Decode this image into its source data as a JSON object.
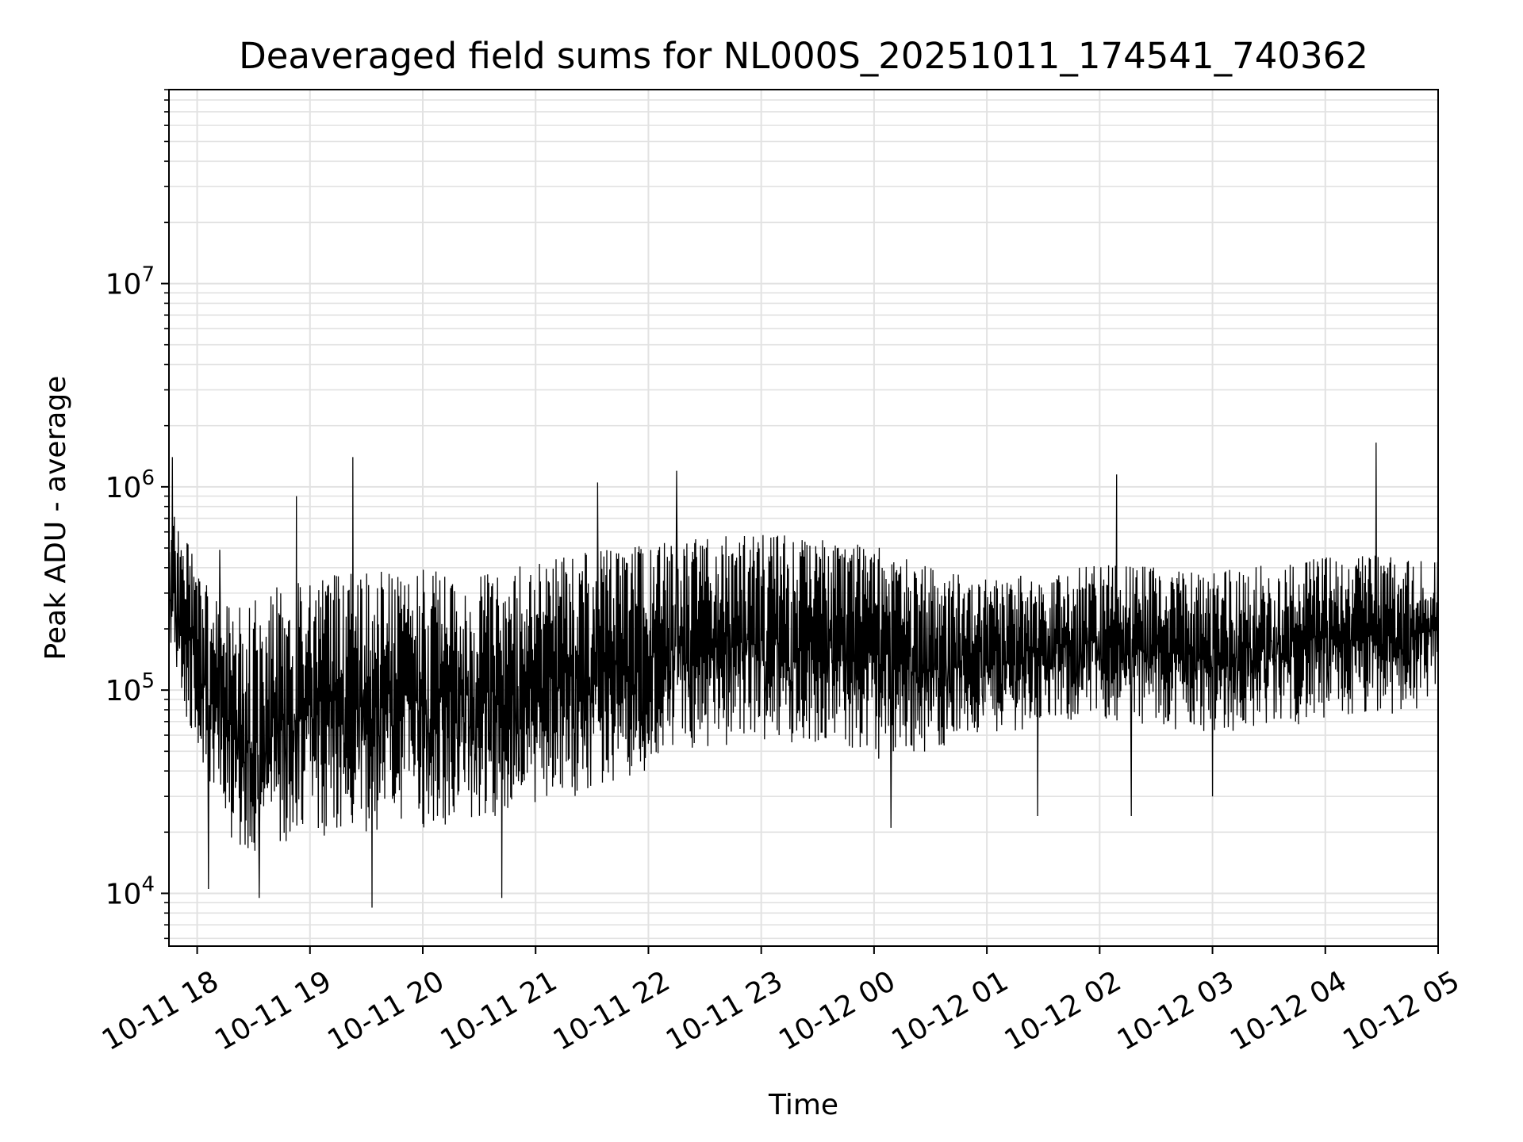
{
  "chart_data": {
    "type": "line",
    "title": "Deaveraged field sums for NL000S_20251011_174541_740362",
    "xlabel": "Time",
    "ylabel": "Peak ADU - average",
    "yscale": "log",
    "ylim": [
      5500,
      90000000
    ],
    "xlim_hours": [
      -0.25,
      11.0
    ],
    "x_tick_labels": [
      "10-11 18",
      "10-11 19",
      "10-11 20",
      "10-11 21",
      "10-11 22",
      "10-11 23",
      "10-12 00",
      "10-12 01",
      "10-12 02",
      "10-12 03",
      "10-12 04",
      "10-12 05"
    ],
    "y_ticks": [
      {
        "base": "10",
        "exp": "4",
        "value": 10000
      },
      {
        "base": "10",
        "exp": "5",
        "value": 100000
      },
      {
        "base": "10",
        "exp": "6",
        "value": 1000000
      },
      {
        "base": "10",
        "exp": "7",
        "value": 10000000
      }
    ],
    "grid": true,
    "line_color": "#000000",
    "grid_color": "#e2e2e2",
    "series": [
      {
        "name": "deaveraged field sum",
        "envelope": {
          "hours": [
            -0.25,
            -0.15,
            0.0,
            0.15,
            0.3,
            0.5,
            0.75,
            1.0,
            1.5,
            2.0,
            2.5,
            3.0,
            3.5,
            4.0,
            4.5,
            5.0,
            5.5,
            6.0,
            6.5,
            7.0,
            7.5,
            8.0,
            8.5,
            9.0,
            9.5,
            10.0,
            10.5,
            11.0
          ],
          "high": [
            900000,
            600000,
            450000,
            300000,
            250000,
            280000,
            330000,
            360000,
            380000,
            400000,
            370000,
            420000,
            480000,
            520000,
            560000,
            590000,
            560000,
            520000,
            400000,
            360000,
            380000,
            420000,
            400000,
            380000,
            420000,
            450000,
            460000,
            430000
          ],
          "low": [
            150000,
            80000,
            45000,
            25000,
            14000,
            13000,
            14000,
            16000,
            17000,
            18000,
            19000,
            22000,
            28000,
            35000,
            45000,
            50000,
            48000,
            40000,
            45000,
            55000,
            60000,
            65000,
            60000,
            55000,
            60000,
            62000,
            65000,
            80000
          ]
        },
        "spikes": [
          {
            "hour": -0.22,
            "value": 1400000
          },
          {
            "hour": 0.88,
            "value": 900000
          },
          {
            "hour": 1.38,
            "value": 1400000
          },
          {
            "hour": 3.55,
            "value": 1050000
          },
          {
            "hour": 4.25,
            "value": 1200000
          },
          {
            "hour": 8.15,
            "value": 1150000
          },
          {
            "hour": 10.45,
            "value": 1650000
          },
          {
            "hour": 0.2,
            "value": 490000
          },
          {
            "hour": -0.05,
            "value": 65000
          },
          {
            "hour": 0.55,
            "value": 9500
          },
          {
            "hour": 1.55,
            "value": 8500
          },
          {
            "hour": 2.7,
            "value": 9500
          },
          {
            "hour": 0.1,
            "value": 10500
          },
          {
            "hour": 6.15,
            "value": 21000
          },
          {
            "hour": 7.45,
            "value": 24000
          },
          {
            "hour": 8.28,
            "value": 24000
          },
          {
            "hour": 9.0,
            "value": 30000
          }
        ]
      }
    ]
  }
}
